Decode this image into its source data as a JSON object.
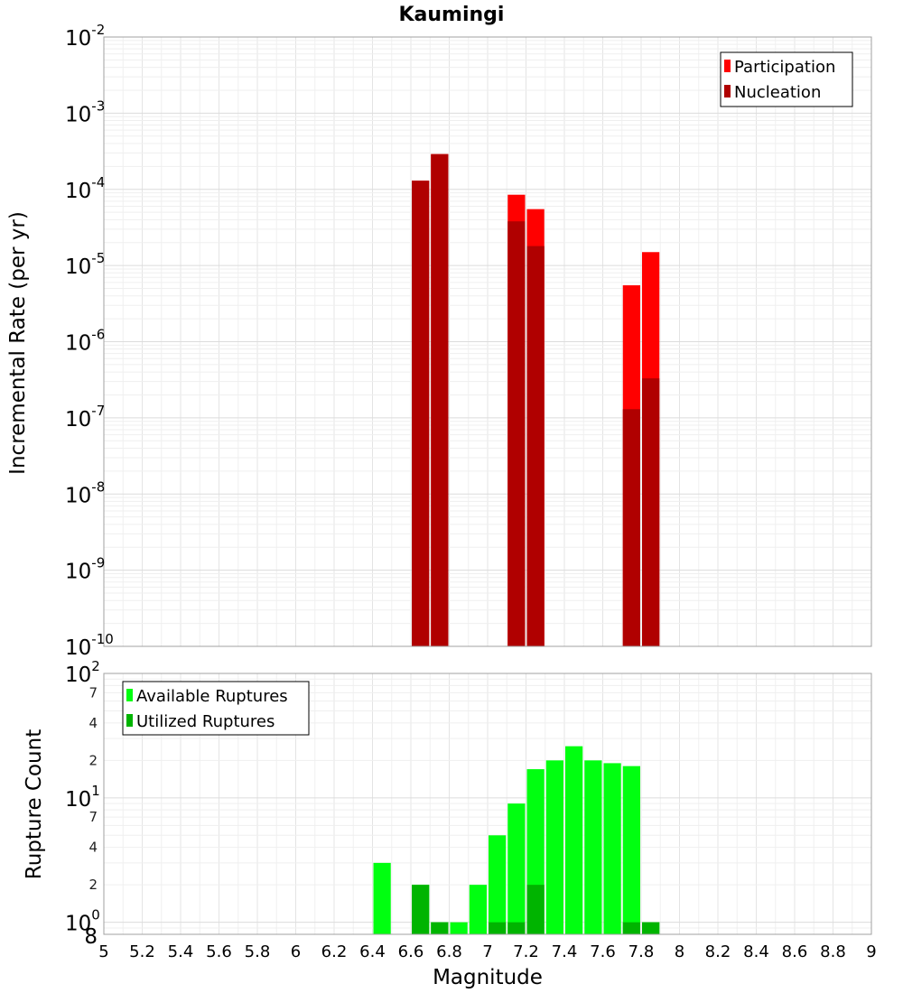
{
  "title": "Kaumingi",
  "chart_data": [
    {
      "type": "bar",
      "title": "Kaumingi",
      "xlabel": "Magnitude",
      "ylabel": "Incremental Rate (per yr)",
      "y_scale": "log",
      "xlim": [
        5,
        9
      ],
      "ylim": [
        1e-10,
        0.01
      ],
      "x_ticks": [
        "5",
        "5.2",
        "5.4",
        "5.6",
        "5.8",
        "6",
        "6.2",
        "6.4",
        "6.6",
        "6.8",
        "7",
        "7.2",
        "7.4",
        "7.6",
        "7.8",
        "8",
        "8.2",
        "8.4",
        "8.6",
        "8.8",
        "9"
      ],
      "y_ticks": [
        {
          "base": "10",
          "exp": "-10",
          "value": 1e-10
        },
        {
          "base": "10",
          "exp": "-9",
          "value": 1e-09
        },
        {
          "base": "10",
          "exp": "-8",
          "value": 1e-08
        },
        {
          "base": "10",
          "exp": "-7",
          "value": 1e-07
        },
        {
          "base": "10",
          "exp": "-6",
          "value": 1e-06
        },
        {
          "base": "10",
          "exp": "-5",
          "value": 1e-05
        },
        {
          "base": "10",
          "exp": "-4",
          "value": 0.0001
        },
        {
          "base": "10",
          "exp": "-3",
          "value": 0.001
        },
        {
          "base": "10",
          "exp": "-2",
          "value": 0.01
        }
      ],
      "grid": true,
      "legend_position": "top-right",
      "legend": [
        "Participation",
        "Nucleation"
      ],
      "series": [
        {
          "name": "Participation",
          "color": "#ff0000",
          "x": [
            6.65,
            6.75,
            7.15,
            7.25,
            7.75,
            7.85
          ],
          "values": [
            0.00013,
            0.00029,
            8.5e-05,
            5.5e-05,
            5.5e-06,
            1.5e-05
          ]
        },
        {
          "name": "Nucleation",
          "color": "#b00000",
          "x": [
            6.65,
            6.75,
            7.15,
            7.25,
            7.75,
            7.85
          ],
          "values": [
            0.00013,
            0.00029,
            3.8e-05,
            1.8e-05,
            1.3e-07,
            3.3e-07
          ]
        }
      ]
    },
    {
      "type": "bar",
      "xlabel": "Magnitude",
      "ylabel": "Rupture Count",
      "y_scale": "log",
      "xlim": [
        5,
        9
      ],
      "ylim": [
        0.8,
        100
      ],
      "major_ticks": [
        {
          "base": "10",
          "exp": "0",
          "value": 1
        },
        {
          "base": "10",
          "exp": "1",
          "value": 10
        },
        {
          "base": "10",
          "exp": "2",
          "value": 100
        }
      ],
      "minor_ticks": [
        {
          "label": "8",
          "value": 0.8
        },
        {
          "label": "2",
          "value": 2
        },
        {
          "label": "4",
          "value": 4
        },
        {
          "label": "7",
          "value": 7
        },
        {
          "label": "2",
          "value": 20
        },
        {
          "label": "4",
          "value": 40
        },
        {
          "label": "7",
          "value": 70
        }
      ],
      "grid": true,
      "legend_position": "top-left",
      "legend": [
        "Available Ruptures",
        "Utilized Ruptures"
      ],
      "series": [
        {
          "name": "Available Ruptures",
          "color": "#00ff10",
          "x": [
            6.45,
            6.65,
            6.75,
            6.85,
            6.95,
            7.05,
            7.15,
            7.25,
            7.35,
            7.45,
            7.55,
            7.65,
            7.75,
            7.85
          ],
          "values": [
            3,
            2,
            1,
            1,
            2,
            5,
            9,
            17,
            20,
            26,
            20,
            19,
            18,
            1
          ]
        },
        {
          "name": "Utilized Ruptures",
          "color": "#00b400",
          "x": [
            6.65,
            6.75,
            7.05,
            7.15,
            7.25,
            7.75,
            7.85
          ],
          "values": [
            2,
            1,
            1,
            1,
            2,
            1,
            1
          ]
        }
      ]
    }
  ]
}
